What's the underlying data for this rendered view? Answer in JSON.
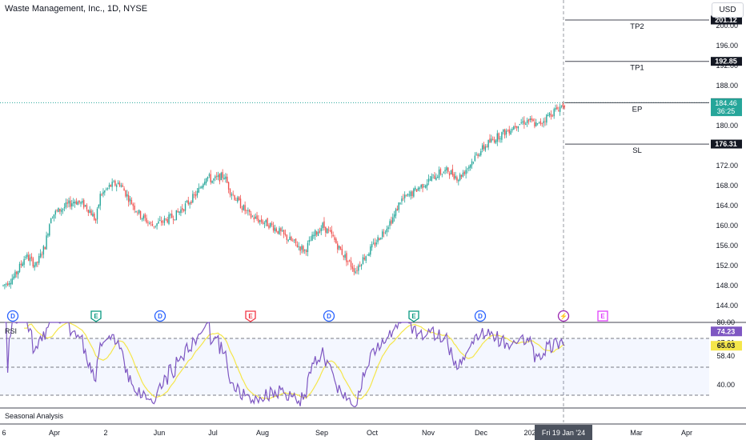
{
  "header": {
    "title": "Waste Management, Inc., 1D, NYSE",
    "currency": "USD"
  },
  "price_axis": {
    "ticks": [
      "144.00",
      "148.00",
      "152.00",
      "156.00",
      "160.00",
      "164.00",
      "168.00",
      "172.00",
      "176.00",
      "180.00",
      "184.00",
      "188.00",
      "192.00",
      "196.00",
      "200.00"
    ],
    "badges": {
      "tp2": "201.12",
      "tp1": "192.85",
      "ep": "184.58",
      "last": "184.46",
      "countdown": "36:25",
      "sl": "176.31"
    }
  },
  "levels": {
    "tp2": {
      "label": "TP2",
      "value": 201.12
    },
    "tp1": {
      "label": "TP1",
      "value": 192.85
    },
    "ep": {
      "label": "EP",
      "value": 184.58
    },
    "sl": {
      "label": "SL",
      "value": 176.31
    }
  },
  "events": [
    {
      "label": "D",
      "kind": "dividend"
    },
    {
      "label": "E",
      "kind": "earnings"
    },
    {
      "label": "D",
      "kind": "dividend"
    },
    {
      "label": "E",
      "kind": "earnings-miss"
    },
    {
      "label": "D",
      "kind": "dividend"
    },
    {
      "label": "E",
      "kind": "earnings"
    },
    {
      "label": "D",
      "kind": "dividend"
    },
    {
      "label": "⚡",
      "kind": "split"
    },
    {
      "label": "E",
      "kind": "earnings-upcoming"
    }
  ],
  "rsi_panel": {
    "label": "RSI",
    "ticks": [
      "80.00",
      "67.01",
      "58.40",
      "40.00"
    ],
    "badges": {
      "rsi": "74.23",
      "ma": "65.03"
    }
  },
  "seasonal": {
    "label": "Seasonal Analysis"
  },
  "time_axis": {
    "ticks": [
      "6",
      "Apr",
      "2",
      "Jun",
      "Jul",
      "Aug",
      "Sep",
      "Oct",
      "Nov",
      "Dec",
      "202",
      "Mar",
      "Apr"
    ],
    "crosshair_label": "Fri 19 Jan '24"
  },
  "colors": {
    "up": "#26a69a",
    "down": "#ef5350",
    "rsi": "#7e57c2",
    "rsi_ma": "#f5e64a",
    "dividend": "#2962ff",
    "earnings": "#089981",
    "earnings_miss": "#f23645",
    "split": "#9c27b0",
    "earnings_upcoming": "#e040fb"
  },
  "chart_data": {
    "type": "candlestick",
    "title": "Waste Management, Inc., 1D, NYSE",
    "ylim": [
      142,
      203
    ],
    "rsi_ylim": [
      20,
      85
    ],
    "anchors": [
      [
        0,
        148
      ],
      [
        8,
        150
      ],
      [
        15,
        154
      ],
      [
        22,
        152
      ],
      [
        28,
        156
      ],
      [
        32,
        162
      ],
      [
        40,
        163.5
      ],
      [
        48,
        165
      ],
      [
        55,
        164
      ],
      [
        58,
        163
      ],
      [
        62,
        161
      ],
      [
        65,
        166
      ],
      [
        72,
        168
      ],
      [
        78,
        168.5
      ],
      [
        85,
        165
      ],
      [
        92,
        162
      ],
      [
        100,
        160
      ],
      [
        108,
        161
      ],
      [
        115,
        162
      ],
      [
        122,
        164
      ],
      [
        130,
        166.5
      ],
      [
        136,
        170
      ],
      [
        140,
        169
      ],
      [
        148,
        170
      ],
      [
        152,
        167
      ],
      [
        158,
        164.5
      ],
      [
        165,
        162
      ],
      [
        172,
        161
      ],
      [
        180,
        160
      ],
      [
        188,
        158
      ],
      [
        195,
        156.5
      ],
      [
        202,
        155
      ],
      [
        208,
        158
      ],
      [
        214,
        160
      ],
      [
        220,
        158
      ],
      [
        226,
        155
      ],
      [
        232,
        152.5
      ],
      [
        236,
        151
      ],
      [
        240,
        153
      ],
      [
        248,
        156
      ],
      [
        255,
        159
      ],
      [
        262,
        162
      ],
      [
        266,
        165
      ],
      [
        272,
        166
      ],
      [
        278,
        167.5
      ],
      [
        285,
        169
      ],
      [
        292,
        170.5
      ],
      [
        298,
        171
      ],
      [
        305,
        169.5
      ],
      [
        312,
        172
      ],
      [
        318,
        174.5
      ],
      [
        325,
        176.5
      ],
      [
        332,
        178
      ],
      [
        338,
        179
      ],
      [
        345,
        180.5
      ],
      [
        352,
        181
      ],
      [
        358,
        180
      ],
      [
        365,
        182
      ],
      [
        372,
        183.5
      ],
      [
        376,
        184.4
      ]
    ]
  }
}
